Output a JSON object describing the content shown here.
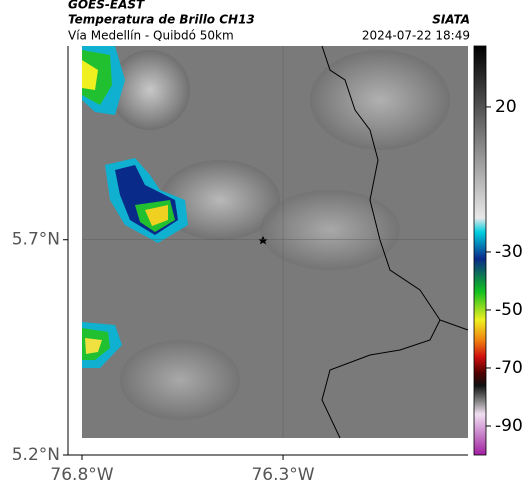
{
  "header": {
    "title": "GOES-EAST",
    "subtitle": "Temperatura de Brillo CH13",
    "region": "Vía Medellín - Quibdó 50km",
    "source": "SIATA",
    "timestamp": "2024-07-22 18:49"
  },
  "map": {
    "latlim": [
      5.2,
      6.15
    ],
    "lonlim": [
      -76.8,
      -75.84
    ],
    "lat_ticks": [
      {
        "value": 5.7,
        "label": "5.7°N"
      },
      {
        "value": 5.2,
        "label": "5.2°N"
      }
    ],
    "lon_ticks": [
      {
        "value": -76.8,
        "label": "76.8°W"
      },
      {
        "value": -76.3,
        "label": "76.3°W"
      }
    ],
    "grid": true
  },
  "colorbar": {
    "lim": [
      41,
      -100
    ],
    "ticks": [
      20,
      -30,
      -50,
      -70,
      -90
    ]
  }
}
